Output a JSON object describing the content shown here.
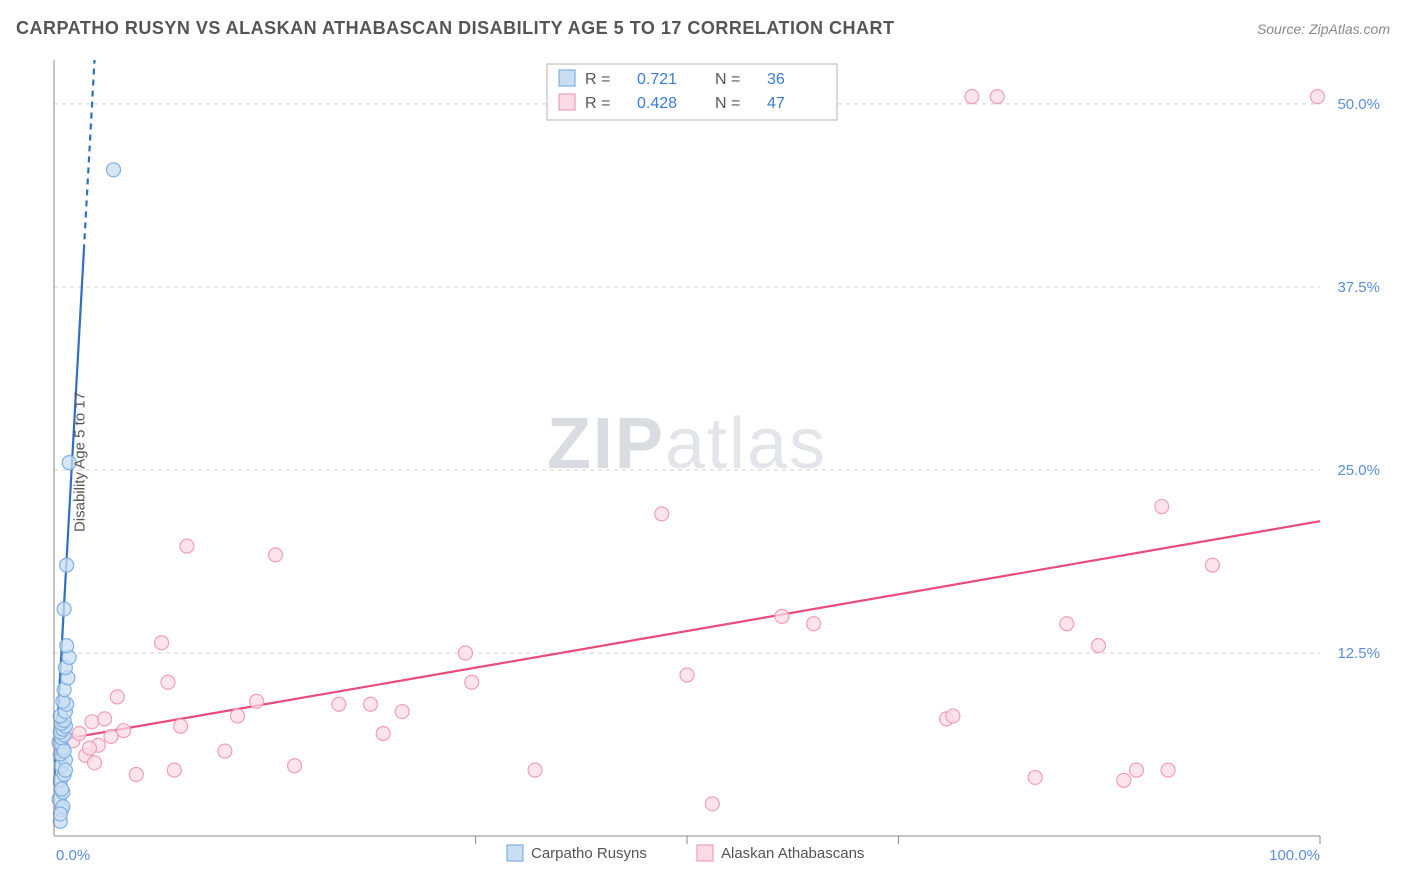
{
  "title": "CARPATHO RUSYN VS ALASKAN ATHABASCAN DISABILITY AGE 5 TO 17 CORRELATION CHART",
  "source": "Source: ZipAtlas.com",
  "ylabel": "Disability Age 5 to 17",
  "watermark_bold": "ZIP",
  "watermark_thin": "atlas",
  "chart": {
    "xlim": [
      0,
      100
    ],
    "ylim": [
      0,
      53
    ],
    "xtick_labels": [
      "0.0%",
      "100.0%"
    ],
    "xtick_positions": [
      0,
      100
    ],
    "xtick_stubs": [
      33.3,
      50,
      66.7,
      100
    ],
    "ytick_labels": [
      "12.5%",
      "25.0%",
      "37.5%",
      "50.0%"
    ],
    "ytick_positions": [
      12.5,
      25,
      37.5,
      50
    ],
    "background": "#ffffff",
    "grid_color": "#d0d0d0",
    "axis_color": "#888888",
    "tick_label_color": "#5b8dd6",
    "marker_radius": 7,
    "marker_stroke_width": 1.2,
    "trend_line_width": 2.2
  },
  "series": {
    "blue": {
      "label": "Carpatho Rusyns",
      "fill": "#c9ddf3",
      "stroke": "#7fb0e3",
      "line_color": "#2f6fc0",
      "R": "0.721",
      "N": "36",
      "trend": {
        "x1": 0,
        "y1": 3.5,
        "x2": 3.2,
        "y2": 53,
        "dash_from_y": 40
      },
      "points": [
        [
          0.5,
          1.0
        ],
        [
          0.6,
          1.8
        ],
        [
          0.4,
          2.5
        ],
        [
          0.7,
          3.0
        ],
        [
          0.5,
          3.8
        ],
        [
          0.8,
          4.2
        ],
        [
          0.6,
          4.8
        ],
        [
          0.9,
          5.2
        ],
        [
          0.5,
          5.6
        ],
        [
          0.7,
          6.0
        ],
        [
          0.4,
          6.4
        ],
        [
          0.6,
          6.7
        ],
        [
          0.8,
          6.9
        ],
        [
          0.5,
          7.1
        ],
        [
          0.7,
          7.3
        ],
        [
          0.9,
          7.5
        ],
        [
          0.6,
          7.7
        ],
        [
          0.8,
          7.9
        ],
        [
          0.5,
          8.2
        ],
        [
          0.9,
          8.5
        ],
        [
          1.0,
          9.0
        ],
        [
          0.7,
          9.2
        ],
        [
          0.8,
          10.0
        ],
        [
          1.1,
          10.8
        ],
        [
          0.9,
          11.5
        ],
        [
          1.2,
          12.2
        ],
        [
          1.0,
          13.0
        ],
        [
          0.8,
          15.5
        ],
        [
          1.0,
          18.5
        ],
        [
          1.2,
          25.5
        ],
        [
          4.7,
          45.5
        ],
        [
          0.9,
          4.5
        ],
        [
          0.6,
          3.2
        ],
        [
          0.7,
          2.0
        ],
        [
          0.5,
          1.5
        ],
        [
          0.8,
          5.8
        ]
      ]
    },
    "pink": {
      "label": "Alaskan Athabascans",
      "fill": "#fbdbe4",
      "stroke": "#f09fb6",
      "line_color": "#e94b7a",
      "R": "0.428",
      "N": "47",
      "trend": {
        "x1": 0,
        "y1": 6.5,
        "x2": 100,
        "y2": 21.5
      },
      "points": [
        [
          1.5,
          6.5
        ],
        [
          2.0,
          7.0
        ],
        [
          2.5,
          5.5
        ],
        [
          3.0,
          7.8
        ],
        [
          3.5,
          6.2
        ],
        [
          4.0,
          8.0
        ],
        [
          5.0,
          9.5
        ],
        [
          5.5,
          7.2
        ],
        [
          6.5,
          4.2
        ],
        [
          8.5,
          13.2
        ],
        [
          9.0,
          10.5
        ],
        [
          9.5,
          4.5
        ],
        [
          10.0,
          7.5
        ],
        [
          10.5,
          19.8
        ],
        [
          13.5,
          5.8
        ],
        [
          14.5,
          8.2
        ],
        [
          16.0,
          9.2
        ],
        [
          17.5,
          19.2
        ],
        [
          19.0,
          4.8
        ],
        [
          22.5,
          9.0
        ],
        [
          25.0,
          9.0
        ],
        [
          26.0,
          7.0
        ],
        [
          27.5,
          8.5
        ],
        [
          32.5,
          12.5
        ],
        [
          33.0,
          10.5
        ],
        [
          38.0,
          4.5
        ],
        [
          48.0,
          22.0
        ],
        [
          50.0,
          11.0
        ],
        [
          52.0,
          2.2
        ],
        [
          57.5,
          15.0
        ],
        [
          60.0,
          14.5
        ],
        [
          70.5,
          8.0
        ],
        [
          71.0,
          8.2
        ],
        [
          72.5,
          50.5
        ],
        [
          74.5,
          50.5
        ],
        [
          77.5,
          4.0
        ],
        [
          80.0,
          14.5
        ],
        [
          82.5,
          13.0
        ],
        [
          84.5,
          3.8
        ],
        [
          85.5,
          4.5
        ],
        [
          87.5,
          22.5
        ],
        [
          88.0,
          4.5
        ],
        [
          91.5,
          18.5
        ],
        [
          99.8,
          50.5
        ],
        [
          2.8,
          6.0
        ],
        [
          3.2,
          5.0
        ],
        [
          4.5,
          6.8
        ]
      ]
    }
  },
  "legend_top": {
    "r_label": "R  =",
    "n_label": "N  =",
    "box_stroke": "#b0b0b0",
    "value_color": "#3a7bd5",
    "text_color": "#555555"
  },
  "legend_bottom": {
    "text_color": "#555555"
  }
}
